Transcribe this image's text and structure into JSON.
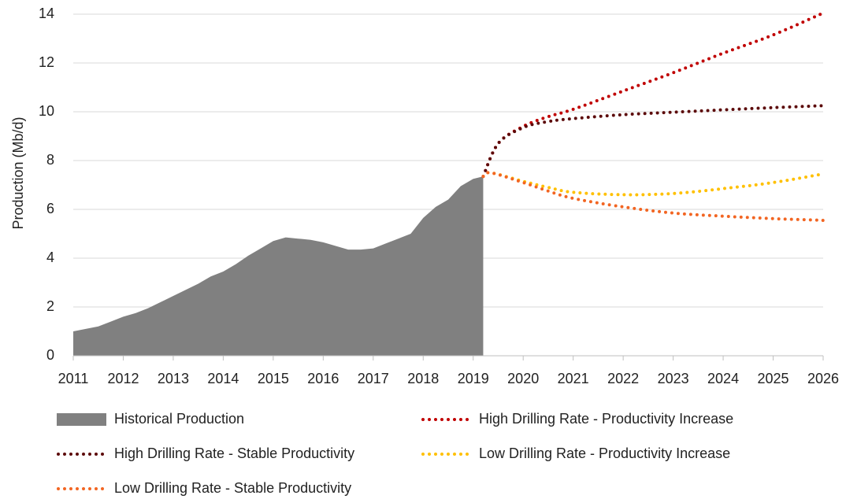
{
  "chart_data": {
    "type": "line",
    "y_label": "Production (Mb/d)",
    "xlim": [
      2011,
      2026
    ],
    "xticks": [
      2011,
      2012,
      2013,
      2014,
      2015,
      2016,
      2017,
      2018,
      2019,
      2020,
      2021,
      2022,
      2023,
      2024,
      2025,
      2026
    ],
    "ylim": [
      0,
      14
    ],
    "yticks": [
      0,
      2,
      4,
      6,
      8,
      10,
      12,
      14
    ],
    "grid": true,
    "series": [
      {
        "name": "Historical Production",
        "color": "#808080",
        "style": "area",
        "x": [
          2011,
          2011.25,
          2011.5,
          2011.75,
          2012,
          2012.25,
          2012.5,
          2012.75,
          2013,
          2013.25,
          2013.5,
          2013.75,
          2014,
          2014.25,
          2014.5,
          2014.75,
          2015,
          2015.25,
          2015.5,
          2015.75,
          2016,
          2016.25,
          2016.5,
          2016.75,
          2017,
          2017.25,
          2017.5,
          2017.75,
          2018,
          2018.25,
          2018.5,
          2018.75,
          2019,
          2019.2
        ],
        "values": [
          1.0,
          1.1,
          1.2,
          1.4,
          1.6,
          1.75,
          1.95,
          2.2,
          2.45,
          2.7,
          2.95,
          3.25,
          3.45,
          3.75,
          4.1,
          4.4,
          4.7,
          4.85,
          4.8,
          4.75,
          4.65,
          4.5,
          4.35,
          4.35,
          4.4,
          4.6,
          4.8,
          5.0,
          5.65,
          6.1,
          6.4,
          6.95,
          7.25,
          7.35
        ]
      },
      {
        "name": "High Drilling Rate - Productivity Increase",
        "color": "#c00000",
        "style": "dotted",
        "x": [
          2019.2,
          2019.5,
          2020,
          2020.5,
          2021,
          2022,
          2023,
          2024,
          2025,
          2025.95
        ],
        "values": [
          7.35,
          8.7,
          9.4,
          9.8,
          10.1,
          10.85,
          11.6,
          12.4,
          13.15,
          14.0
        ]
      },
      {
        "name": "High Drilling Rate - Stable Productivity",
        "color": "#5c0a0a",
        "style": "dotted",
        "x": [
          2019.2,
          2019.5,
          2020,
          2020.5,
          2021,
          2022,
          2023,
          2024,
          2025,
          2026
        ],
        "values": [
          7.35,
          8.7,
          9.35,
          9.6,
          9.72,
          9.88,
          9.98,
          10.08,
          10.17,
          10.25
        ]
      },
      {
        "name": "Low Drilling Rate - Productivity Increase",
        "color": "#ffc000",
        "style": "dotted",
        "x": [
          2019.2,
          2019.35,
          2020,
          2020.5,
          2021,
          2022,
          2023,
          2024,
          2025,
          2026
        ],
        "values": [
          7.35,
          7.5,
          7.15,
          6.9,
          6.7,
          6.6,
          6.65,
          6.85,
          7.1,
          7.45
        ]
      },
      {
        "name": "Low Drilling Rate - Stable Productivity",
        "color": "#f26522",
        "style": "dotted",
        "x": [
          2019.2,
          2019.35,
          2020,
          2020.5,
          2021,
          2022,
          2023,
          2024,
          2025,
          2026
        ],
        "values": [
          7.35,
          7.5,
          7.1,
          6.75,
          6.45,
          6.1,
          5.85,
          5.72,
          5.62,
          5.55
        ]
      }
    ]
  }
}
